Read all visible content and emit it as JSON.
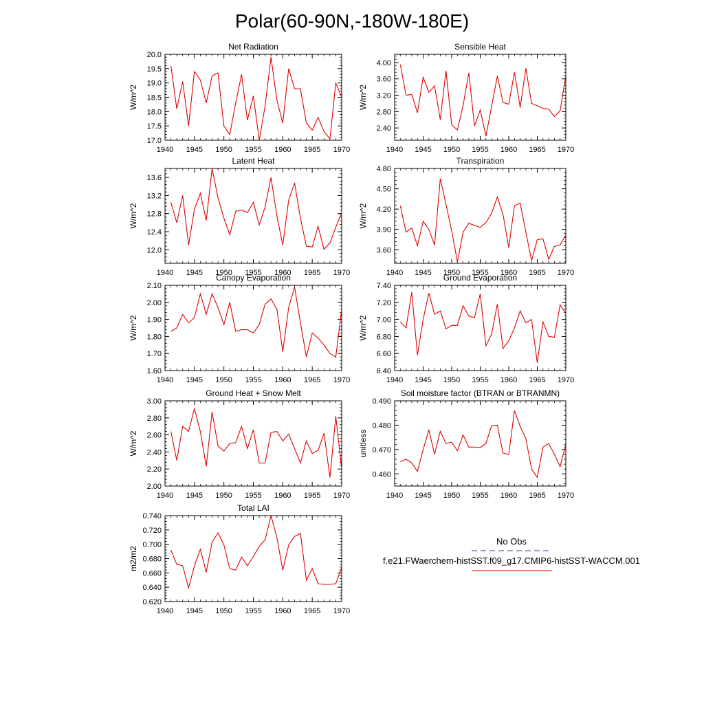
{
  "title": "Polar(60-90N,-180W-180E)",
  "colors": {
    "series": "#e00000",
    "axis": "#000000",
    "obs": "#2f3f9f"
  },
  "legend": {
    "obs_label": "No Obs",
    "model_label": "f.e21.FWaerchem-histSST.f09_g17.CMIP6-histSST-WACCM.001"
  },
  "chart_data": [
    {
      "type": "line",
      "title": "Net Radiation",
      "ylabel": "W/m^2",
      "xlim": [
        1940,
        1970
      ],
      "ylim": [
        17.0,
        20.0
      ],
      "yticks": [
        17.0,
        17.5,
        18.0,
        18.5,
        19.0,
        19.5,
        20.0
      ],
      "ytick_labels": [
        "17.0",
        "17.5",
        "18.0",
        "18.5",
        "19.0",
        "19.5",
        "20.0"
      ],
      "xticks": [
        1940,
        1945,
        1950,
        1955,
        1960,
        1965,
        1970
      ],
      "x": [
        1941,
        1942,
        1943,
        1944,
        1945,
        1946,
        1947,
        1948,
        1949,
        1950,
        1951,
        1952,
        1953,
        1954,
        1955,
        1956,
        1957,
        1958,
        1959,
        1960,
        1961,
        1962,
        1963,
        1964,
        1965,
        1966,
        1967,
        1968,
        1969,
        1970
      ],
      "values": [
        19.6,
        18.1,
        19.05,
        17.5,
        19.4,
        19.1,
        18.3,
        19.25,
        19.35,
        17.5,
        17.2,
        18.3,
        19.3,
        17.7,
        18.55,
        17.0,
        18.2,
        19.9,
        18.4,
        17.6,
        19.5,
        18.8,
        18.8,
        17.6,
        17.35,
        17.8,
        17.3,
        17.05,
        19.0,
        18.5
      ]
    },
    {
      "type": "line",
      "title": "Sensible Heat",
      "ylabel": "W/m^2",
      "xlim": [
        1940,
        1970
      ],
      "ylim": [
        2.1,
        4.2
      ],
      "yticks": [
        2.4,
        2.8,
        3.2,
        3.6,
        4.0
      ],
      "ytick_labels": [
        "2.40",
        "2.80",
        "3.20",
        "3.60",
        "4.00"
      ],
      "xticks": [
        1940,
        1945,
        1950,
        1955,
        1960,
        1965,
        1970
      ],
      "x": [
        1941,
        1942,
        1943,
        1944,
        1945,
        1946,
        1947,
        1948,
        1949,
        1950,
        1951,
        1952,
        1953,
        1954,
        1955,
        1956,
        1957,
        1958,
        1959,
        1960,
        1961,
        1962,
        1963,
        1964,
        1965,
        1966,
        1967,
        1968,
        1969,
        1970
      ],
      "values": [
        3.95,
        3.2,
        3.22,
        2.77,
        3.64,
        3.27,
        3.43,
        2.6,
        3.8,
        2.48,
        2.35,
        2.95,
        3.75,
        2.45,
        2.84,
        2.2,
        2.93,
        3.67,
        3.02,
        2.98,
        3.76,
        2.9,
        3.86,
        3.0,
        2.94,
        2.88,
        2.86,
        2.68,
        2.82,
        3.68
      ]
    },
    {
      "type": "line",
      "title": "Latent Heat",
      "ylabel": "W/m^2",
      "xlim": [
        1940,
        1970
      ],
      "ylim": [
        11.7,
        13.8
      ],
      "yticks": [
        12.0,
        12.4,
        12.8,
        13.2,
        13.6
      ],
      "ytick_labels": [
        "12.0",
        "12.4",
        "12.8",
        "13.2",
        "13.6"
      ],
      "xticks": [
        1940,
        1945,
        1950,
        1955,
        1960,
        1965,
        1970
      ],
      "x": [
        1941,
        1942,
        1943,
        1944,
        1945,
        1946,
        1947,
        1948,
        1949,
        1950,
        1951,
        1952,
        1953,
        1954,
        1955,
        1956,
        1957,
        1958,
        1959,
        1960,
        1961,
        1962,
        1963,
        1964,
        1965,
        1966,
        1967,
        1968,
        1969,
        1970
      ],
      "values": [
        13.05,
        12.6,
        13.2,
        12.1,
        12.9,
        13.25,
        12.65,
        13.8,
        13.15,
        12.7,
        12.33,
        12.85,
        12.88,
        12.82,
        13.05,
        12.55,
        12.95,
        13.6,
        12.75,
        12.1,
        13.1,
        13.48,
        12.7,
        12.08,
        12.06,
        12.52,
        12.01,
        12.15,
        12.5,
        12.82
      ]
    },
    {
      "type": "line",
      "title": "Transpiration",
      "ylabel": "W/m^2",
      "xlim": [
        1940,
        1970
      ],
      "ylim": [
        3.4,
        4.8
      ],
      "yticks": [
        3.6,
        3.9,
        4.2,
        4.5,
        4.8
      ],
      "ytick_labels": [
        "3.60",
        "3.90",
        "4.20",
        "4.50",
        "4.80"
      ],
      "xticks": [
        1940,
        1945,
        1950,
        1955,
        1960,
        1965,
        1970
      ],
      "x": [
        1941,
        1942,
        1943,
        1944,
        1945,
        1946,
        1947,
        1948,
        1949,
        1950,
        1951,
        1952,
        1953,
        1954,
        1955,
        1956,
        1957,
        1958,
        1959,
        1960,
        1961,
        1962,
        1963,
        1964,
        1965,
        1966,
        1967,
        1968,
        1969,
        1970
      ],
      "values": [
        4.25,
        3.86,
        3.92,
        3.66,
        4.02,
        3.9,
        3.67,
        4.65,
        4.27,
        3.88,
        3.42,
        3.86,
        3.99,
        3.96,
        3.93,
        4.0,
        4.14,
        4.38,
        4.12,
        3.63,
        4.25,
        4.29,
        3.86,
        3.44,
        3.75,
        3.76,
        3.46,
        3.65,
        3.67,
        3.82
      ]
    },
    {
      "type": "line",
      "title": "Canopy Evaporation",
      "ylabel": "W/m^2",
      "xlim": [
        1940,
        1970
      ],
      "ylim": [
        1.6,
        2.1
      ],
      "yticks": [
        1.6,
        1.7,
        1.8,
        1.9,
        2.0,
        2.1
      ],
      "ytick_labels": [
        "1.60",
        "1.70",
        "1.80",
        "1.90",
        "2.00",
        "2.10"
      ],
      "xticks": [
        1940,
        1945,
        1950,
        1955,
        1960,
        1965,
        1970
      ],
      "x": [
        1941,
        1942,
        1943,
        1944,
        1945,
        1946,
        1947,
        1948,
        1949,
        1950,
        1951,
        1952,
        1953,
        1954,
        1955,
        1956,
        1957,
        1958,
        1959,
        1960,
        1961,
        1962,
        1963,
        1964,
        1965,
        1966,
        1967,
        1968,
        1969,
        1970
      ],
      "values": [
        1.83,
        1.85,
        1.93,
        1.88,
        1.91,
        2.05,
        1.93,
        2.05,
        1.97,
        1.87,
        2.0,
        1.83,
        1.84,
        1.84,
        1.82,
        1.87,
        1.99,
        2.02,
        1.96,
        1.71,
        1.97,
        2.09,
        1.88,
        1.68,
        1.82,
        1.79,
        1.75,
        1.7,
        1.68,
        1.96
      ]
    },
    {
      "type": "line",
      "title": "Ground Evaporation",
      "ylabel": "W/m^2",
      "xlim": [
        1940,
        1970
      ],
      "ylim": [
        6.4,
        7.4
      ],
      "yticks": [
        6.4,
        6.6,
        6.8,
        7.0,
        7.2,
        7.4
      ],
      "ytick_labels": [
        "6.40",
        "6.60",
        "6.80",
        "7.00",
        "7.20",
        "7.40"
      ],
      "xticks": [
        1940,
        1945,
        1950,
        1955,
        1960,
        1965,
        1970
      ],
      "x": [
        1941,
        1942,
        1943,
        1944,
        1945,
        1946,
        1947,
        1948,
        1949,
        1950,
        1951,
        1952,
        1953,
        1954,
        1955,
        1956,
        1957,
        1958,
        1959,
        1960,
        1961,
        1962,
        1963,
        1964,
        1965,
        1966,
        1967,
        1968,
        1969,
        1970
      ],
      "values": [
        6.97,
        6.9,
        7.32,
        6.58,
        7.0,
        7.31,
        7.06,
        7.1,
        6.89,
        6.93,
        6.93,
        7.16,
        7.04,
        7.02,
        7.3,
        6.69,
        6.83,
        7.18,
        6.66,
        6.75,
        6.9,
        7.1,
        6.96,
        7.0,
        6.49,
        6.97,
        6.8,
        6.79,
        7.17,
        7.07
      ]
    },
    {
      "type": "line",
      "title": "Ground Heat + Snow Melt",
      "ylabel": "W/m^2",
      "xlim": [
        1940,
        1970
      ],
      "ylim": [
        2.0,
        3.0
      ],
      "yticks": [
        2.0,
        2.2,
        2.4,
        2.6,
        2.8,
        3.0
      ],
      "ytick_labels": [
        "2.00",
        "2.20",
        "2.40",
        "2.60",
        "2.80",
        "3.00"
      ],
      "xticks": [
        1940,
        1945,
        1950,
        1955,
        1960,
        1965,
        1970
      ],
      "x": [
        1941,
        1942,
        1943,
        1944,
        1945,
        1946,
        1947,
        1948,
        1949,
        1950,
        1951,
        1952,
        1953,
        1954,
        1955,
        1956,
        1957,
        1958,
        1959,
        1960,
        1961,
        1962,
        1963,
        1964,
        1965,
        1966,
        1967,
        1968,
        1969,
        1970
      ],
      "values": [
        2.64,
        2.3,
        2.7,
        2.64,
        2.91,
        2.64,
        2.23,
        2.87,
        2.47,
        2.41,
        2.5,
        2.51,
        2.7,
        2.44,
        2.66,
        2.27,
        2.27,
        2.63,
        2.64,
        2.53,
        2.61,
        2.44,
        2.27,
        2.53,
        2.38,
        2.42,
        2.62,
        2.1,
        2.82,
        2.2
      ]
    },
    {
      "type": "line",
      "title": "Soil moisture factor (BTRAN or BTRANMN)",
      "ylabel": "unitless",
      "xlim": [
        1940,
        1970
      ],
      "ylim": [
        0.455,
        0.49
      ],
      "yticks": [
        0.46,
        0.47,
        0.48,
        0.49
      ],
      "ytick_labels": [
        "0.460",
        "0.470",
        "0.480",
        "0.490"
      ],
      "xticks": [
        1940,
        1945,
        1950,
        1955,
        1960,
        1965,
        1970
      ],
      "x": [
        1941,
        1942,
        1943,
        1944,
        1945,
        1946,
        1947,
        1948,
        1949,
        1950,
        1951,
        1952,
        1953,
        1954,
        1955,
        1956,
        1957,
        1958,
        1959,
        1960,
        1961,
        1962,
        1963,
        1964,
        1965,
        1966,
        1967,
        1968,
        1969,
        1970
      ],
      "values": [
        0.465,
        0.466,
        0.4645,
        0.461,
        0.47,
        0.478,
        0.468,
        0.4775,
        0.4725,
        0.473,
        0.4695,
        0.476,
        0.471,
        0.471,
        0.4708,
        0.4725,
        0.4798,
        0.48,
        0.4685,
        0.468,
        0.486,
        0.4795,
        0.4745,
        0.462,
        0.4585,
        0.471,
        0.4725,
        0.468,
        0.463,
        0.472
      ]
    },
    {
      "type": "line",
      "title": "Total LAI",
      "ylabel": "m2/m2",
      "xlim": [
        1940,
        1970
      ],
      "ylim": [
        0.62,
        0.74
      ],
      "yticks": [
        0.62,
        0.64,
        0.66,
        0.68,
        0.7,
        0.72,
        0.74
      ],
      "ytick_labels": [
        "0.620",
        "0.640",
        "0.660",
        "0.680",
        "0.700",
        "0.720",
        "0.740"
      ],
      "xticks": [
        1940,
        1945,
        1950,
        1955,
        1960,
        1965,
        1970
      ],
      "x": [
        1941,
        1942,
        1943,
        1944,
        1945,
        1946,
        1947,
        1948,
        1949,
        1950,
        1951,
        1952,
        1953,
        1954,
        1955,
        1956,
        1957,
        1958,
        1959,
        1960,
        1961,
        1962,
        1963,
        1964,
        1965,
        1966,
        1967,
        1968,
        1969,
        1970
      ],
      "values": [
        0.692,
        0.672,
        0.67,
        0.639,
        0.67,
        0.693,
        0.661,
        0.703,
        0.716,
        0.699,
        0.666,
        0.664,
        0.682,
        0.67,
        0.683,
        0.697,
        0.706,
        0.74,
        0.709,
        0.664,
        0.699,
        0.711,
        0.715,
        0.65,
        0.666,
        0.645,
        0.644,
        0.644,
        0.645,
        0.668
      ]
    }
  ]
}
